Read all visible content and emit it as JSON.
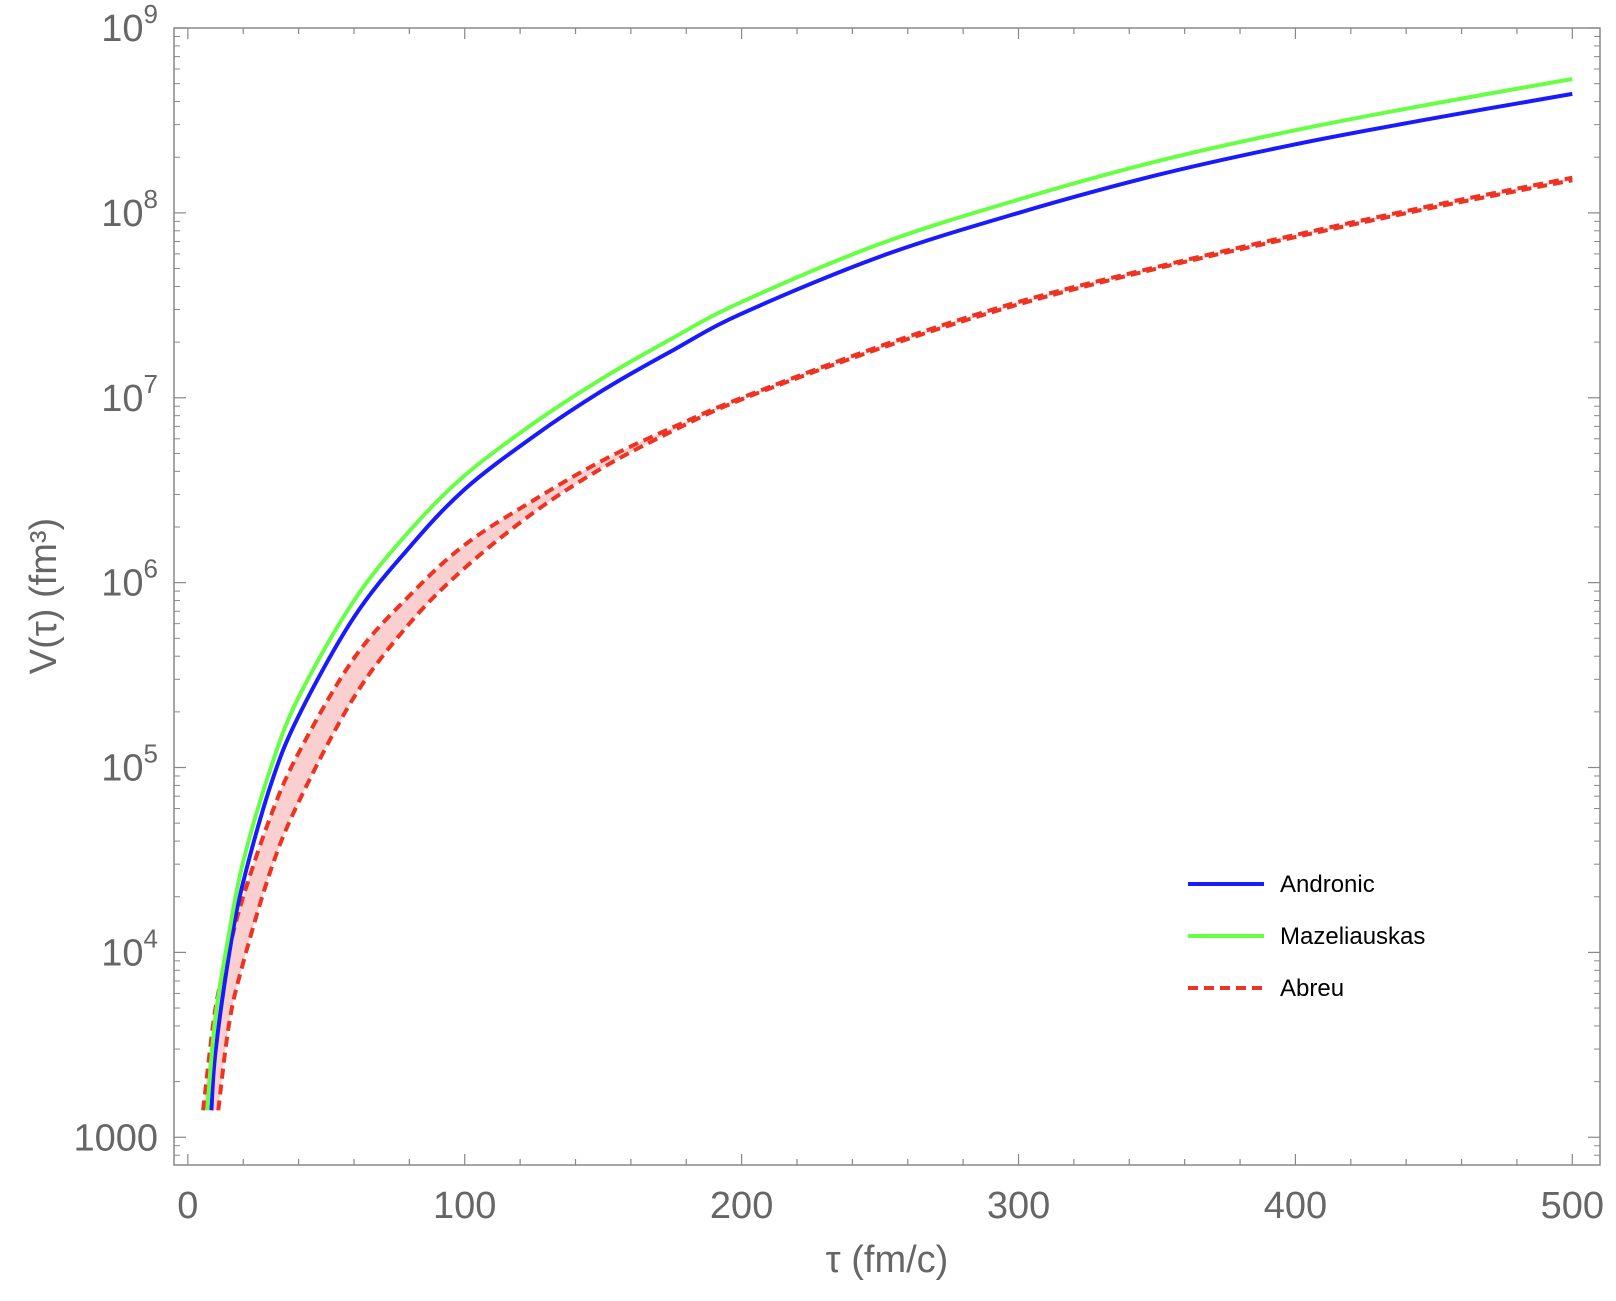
{
  "chart_data": {
    "type": "line",
    "title": "",
    "xlabel": "τ (fm/c)",
    "ylabel": "V(τ) (fm³)",
    "xlim": [
      -5,
      510
    ],
    "ylim_log10": [
      2.85,
      9.0
    ],
    "yscale": "log",
    "grid": false,
    "legend_position": "lower-right",
    "x_ticks": [
      {
        "value": 0,
        "label": "0"
      },
      {
        "value": 100,
        "label": "100"
      },
      {
        "value": 200,
        "label": "200"
      },
      {
        "value": 300,
        "label": "300"
      },
      {
        "value": 400,
        "label": "400"
      },
      {
        "value": 500,
        "label": "500"
      }
    ],
    "y_ticks": [
      {
        "exp": 3,
        "base": "1000",
        "sup": ""
      },
      {
        "exp": 4,
        "base": "10",
        "sup": "4"
      },
      {
        "exp": 5,
        "base": "10",
        "sup": "5"
      },
      {
        "exp": 6,
        "base": "10",
        "sup": "6"
      },
      {
        "exp": 7,
        "base": "10",
        "sup": "7"
      },
      {
        "exp": 8,
        "base": "10",
        "sup": "8"
      },
      {
        "exp": 9,
        "base": "10",
        "sup": "9"
      }
    ],
    "series": [
      {
        "name": "Andronic",
        "color": "#1a1aff",
        "style": "solid",
        "points": [
          [
            8.5,
            1400.0
          ],
          [
            10,
            2900.0
          ],
          [
            15,
            10000.0
          ],
          [
            20,
            24000.0
          ],
          [
            30,
            81000.0
          ],
          [
            40,
            190000.0
          ],
          [
            60,
            650000.0
          ],
          [
            80,
            1550000.0
          ],
          [
            100,
            3200000.0
          ],
          [
            125,
            6200000.0
          ],
          [
            150,
            11000000.0
          ],
          [
            175,
            18000000.0
          ],
          [
            200,
            28500000.0
          ],
          [
            250,
            58000000.0
          ],
          [
            300,
            100000000.0
          ],
          [
            350,
            160000000.0
          ],
          [
            400,
            235000000.0
          ],
          [
            450,
            325000000.0
          ],
          [
            500,
            440000000.0
          ]
        ]
      },
      {
        "name": "Mazeliauskas",
        "color": "#66ff44",
        "style": "solid",
        "points": [
          [
            7,
            1400.0
          ],
          [
            10,
            4500.0
          ],
          [
            15,
            13000.0
          ],
          [
            20,
            31000.0
          ],
          [
            30,
            100000.0
          ],
          [
            40,
            240000.0
          ],
          [
            60,
            800000.0
          ],
          [
            80,
            1900000.0
          ],
          [
            100,
            3800000.0
          ],
          [
            125,
            7300000.0
          ],
          [
            150,
            12800000.0
          ],
          [
            175,
            21000000.0
          ],
          [
            200,
            33000000.0
          ],
          [
            250,
            68000000.0
          ],
          [
            300,
            118000000.0
          ],
          [
            350,
            190000000.0
          ],
          [
            400,
            280000000.0
          ],
          [
            450,
            390000000.0
          ],
          [
            500,
            530000000.0
          ]
        ]
      },
      {
        "name": "Abreu",
        "color": "#ee3322",
        "style": "dashed",
        "band_color": "#f4a9a8",
        "upper": [
          [
            5.5,
            1400.0
          ],
          [
            10,
            5000.0
          ],
          [
            15,
            10500.0
          ],
          [
            20,
            20000.0
          ],
          [
            30,
            55000.0
          ],
          [
            40,
            120000.0
          ],
          [
            60,
            390000.0
          ],
          [
            80,
            850000.0
          ],
          [
            100,
            1600000.0
          ],
          [
            125,
            2800000.0
          ],
          [
            150,
            4600000.0
          ],
          [
            175,
            6900000.0
          ],
          [
            200,
            10000000.0
          ],
          [
            250,
            19000000.0
          ],
          [
            300,
            33000000.0
          ],
          [
            350,
            51000000.0
          ],
          [
            400,
            76000000.0
          ],
          [
            450,
            110000000.0
          ],
          [
            500,
            155000000.0
          ]
        ],
        "lower": [
          [
            11,
            1400.0
          ],
          [
            15,
            4200.0
          ],
          [
            20,
            8800.0
          ],
          [
            30,
            28000.0
          ],
          [
            40,
            65000.0
          ],
          [
            60,
            240000.0
          ],
          [
            80,
            600000.0
          ],
          [
            100,
            1200000.0
          ],
          [
            125,
            2400000.0
          ],
          [
            150,
            4200000.0
          ],
          [
            175,
            6600000.0
          ],
          [
            200,
            9800000.0
          ],
          [
            250,
            18500000.0
          ],
          [
            300,
            32000000.0
          ],
          [
            350,
            50000000.0
          ],
          [
            400,
            74000000.0
          ],
          [
            450,
            107000000.0
          ],
          [
            500,
            150000000.0
          ]
        ]
      }
    ]
  }
}
